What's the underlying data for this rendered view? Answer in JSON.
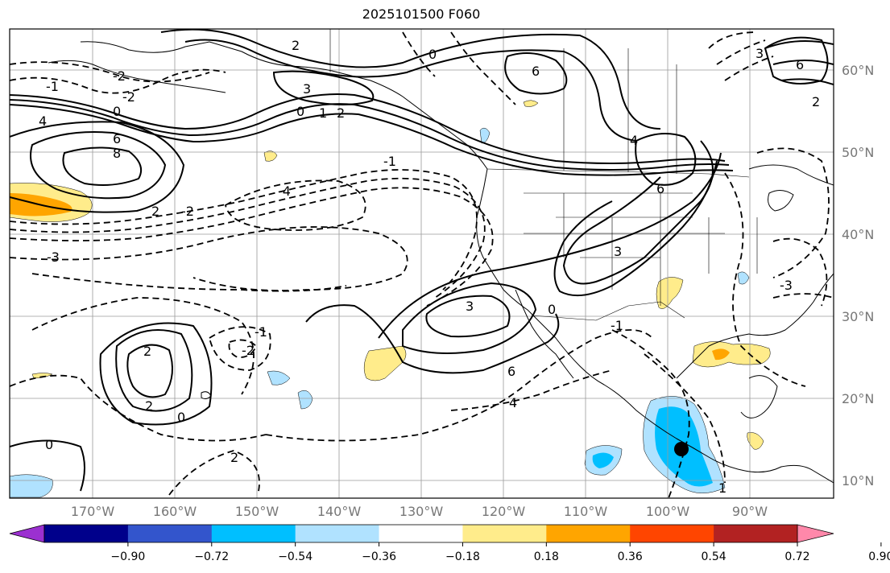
{
  "title": "2025101500 F060",
  "lat_labels": [
    "60°N",
    "50°N",
    "40°N",
    "30°N",
    "20°N",
    "10°N"
  ],
  "lon_labels": [
    "170°W",
    "160°W",
    "150°W",
    "140°W",
    "130°W",
    "120°W",
    "110°W",
    "100°W",
    "90°W"
  ],
  "contour_labels": [
    "-1",
    "-2",
    "0",
    "4",
    "6",
    "8",
    "2",
    "-2",
    "-4",
    "-3",
    "2",
    "3",
    "-2",
    "0",
    "1",
    "2",
    "0",
    "6",
    "4",
    "6",
    "3",
    "3",
    "-1",
    "0",
    "-1",
    "2",
    "2",
    "0",
    "-1",
    "-2",
    "-3",
    "6",
    "2",
    "0",
    "6",
    "4",
    "3",
    "2",
    "1"
  ],
  "colorbar": {
    "ticks": [
      "−0.90",
      "−0.72",
      "−0.54",
      "−0.36",
      "−0.18",
      "0.18",
      "0.36",
      "0.54",
      "0.72",
      "0.90"
    ],
    "colors": [
      "#9b30d0",
      "#00008b",
      "#3355cc",
      "#00bfff",
      "#b0e2ff",
      "#ffffff",
      "#ffec8b",
      "#ffa500",
      "#ff4500",
      "#b22222",
      "#ff88aa"
    ]
  },
  "colors": {
    "coast": "#000000",
    "grid": "#9a9a9a",
    "contour": "#000000",
    "marker": "#000000"
  }
}
